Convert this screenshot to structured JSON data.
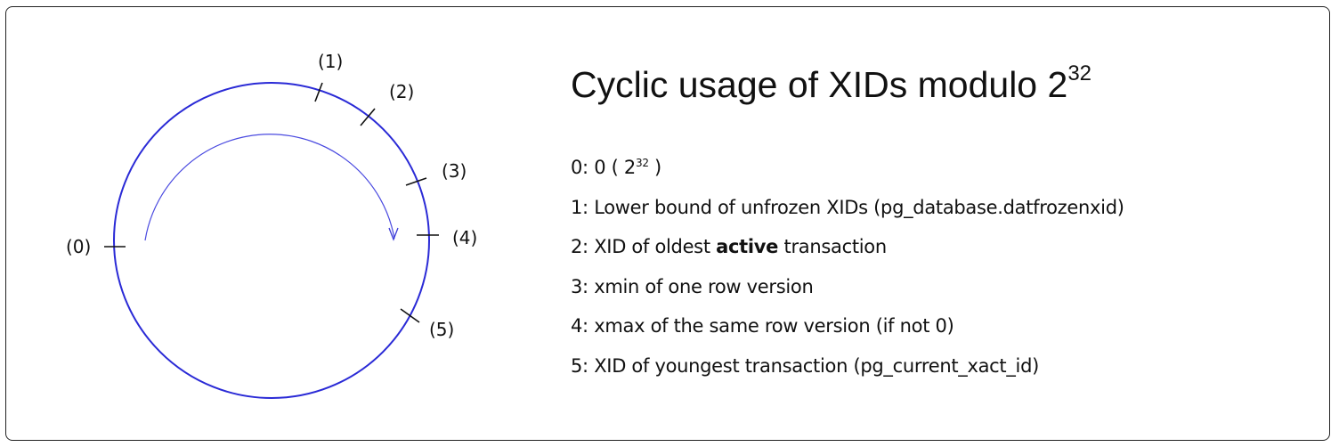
{
  "title": {
    "text": "Cyclic usage of XIDs modulo 2",
    "exponent": "32"
  },
  "colors": {
    "circle": "#2a2ad6",
    "ticks": "#111111",
    "border": "#222222"
  },
  "markers": [
    "(0)",
    "(1)",
    "(2)",
    "(3)",
    "(4)",
    "(5)"
  ],
  "legend": [
    {
      "prefix": "0: 0 ( 2",
      "sup": "32",
      "suffix": " )"
    },
    {
      "prefix": "1: Lower bound of unfrozen XIDs (pg_database.datfrozenxid)"
    },
    {
      "prefix": "2: XID of oldest ",
      "bold": "active",
      "suffix": " transaction"
    },
    {
      "prefix": "3: xmin of one row version"
    },
    {
      "prefix": "4: xmax of the same row version (if not 0)"
    },
    {
      "prefix": "5: XID of youngest transaction (pg_current_xact_id)"
    }
  ]
}
